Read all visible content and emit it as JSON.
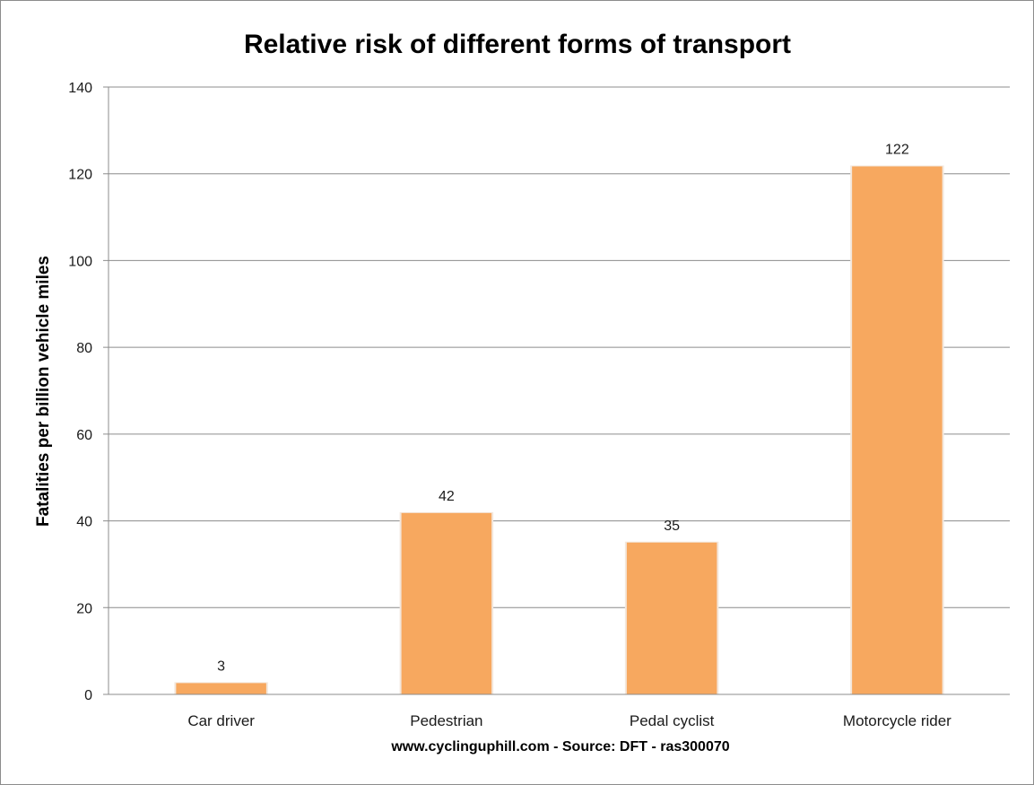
{
  "chart_data": {
    "type": "bar",
    "title": "Relative risk of different forms of transport",
    "ylabel": "Fatalities  per billion vehicle miles",
    "xlabel": "www.cyclinguphill.com - Source: DFT - ras300070",
    "categories": [
      "Car driver",
      "Pedestrian",
      "Pedal cyclist",
      "Motorcycle rider"
    ],
    "values": [
      2.6,
      41.8,
      35,
      121.7
    ],
    "data_labels": [
      "3",
      "42",
      "35",
      "122"
    ],
    "ylim": [
      0,
      140
    ],
    "yticks": [
      0,
      20,
      40,
      60,
      80,
      100,
      120,
      140
    ],
    "ytick_labels": [
      "0",
      "20",
      "40",
      "60",
      "80",
      "100",
      "120",
      "140"
    ],
    "grid": true,
    "legend": "none",
    "bar_color": "#f7a85f",
    "gridline_color": "#8c8c8c"
  }
}
